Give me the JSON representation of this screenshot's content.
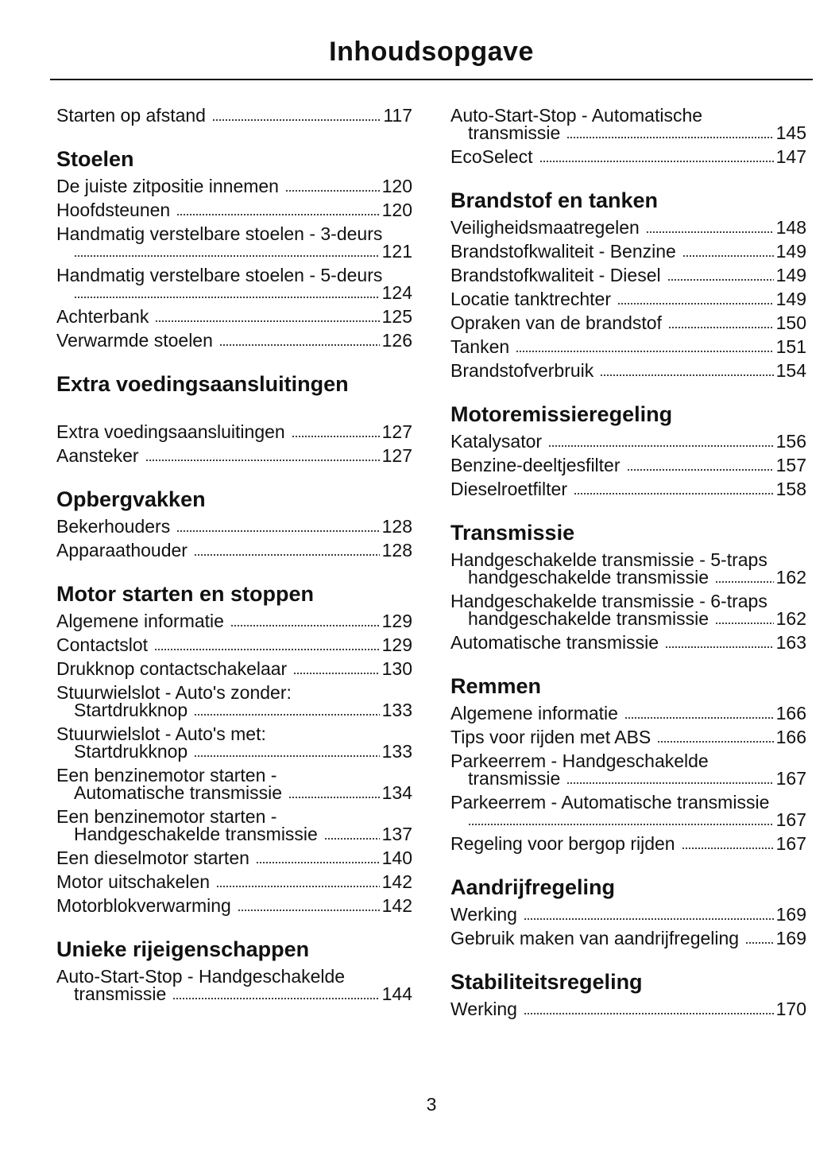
{
  "title": "Inhoudsopgave",
  "page_number": "3",
  "columns": [
    [
      {
        "type": "entry",
        "text": "Starten op afstand",
        "page": "117"
      },
      {
        "type": "heading",
        "text": "Stoelen"
      },
      {
        "type": "entry",
        "text": "De juiste zitpositie innemen",
        "page": "120"
      },
      {
        "type": "entry",
        "text": "Hoofdsteunen",
        "page": "120"
      },
      {
        "type": "entry",
        "text": "Handmatig verstelbare stoelen - 3-deurs",
        "text2": "",
        "page": "121"
      },
      {
        "type": "entry",
        "text": "Handmatig verstelbare stoelen - 5-deurs",
        "text2": "",
        "page": "124"
      },
      {
        "type": "entry",
        "text": "Achterbank",
        "page": "125"
      },
      {
        "type": "entry",
        "text": "Verwarmde stoelen",
        "page": "126"
      },
      {
        "type": "heading",
        "text": "Extra voedingsaansluitingen",
        "gap": true
      },
      {
        "type": "entry",
        "text": "Extra voedingsaansluitingen",
        "page": "127"
      },
      {
        "type": "entry",
        "text": "Aansteker",
        "page": "127"
      },
      {
        "type": "heading",
        "text": "Opbergvakken"
      },
      {
        "type": "entry",
        "text": "Bekerhouders",
        "page": "128"
      },
      {
        "type": "entry",
        "text": "Apparaathouder",
        "page": "128"
      },
      {
        "type": "heading",
        "text": "Motor starten en stoppen"
      },
      {
        "type": "entry",
        "text": "Algemene informatie",
        "page": "129"
      },
      {
        "type": "entry",
        "text": "Contactslot",
        "page": "129"
      },
      {
        "type": "entry",
        "text": "Drukknop contactschakelaar",
        "page": "130"
      },
      {
        "type": "entry",
        "text": "Stuurwielslot - Auto's zonder:",
        "text2": "Startdrukknop",
        "page": "133"
      },
      {
        "type": "entry",
        "text": "Stuurwielslot - Auto's met:",
        "text2": "Startdrukknop",
        "page": "133"
      },
      {
        "type": "entry",
        "text": "Een benzinemotor starten -",
        "text2": "Automatische transmissie",
        "page": "134"
      },
      {
        "type": "entry",
        "text": "Een benzinemotor starten -",
        "text2": "Handgeschakelde transmissie",
        "page": "137"
      },
      {
        "type": "entry",
        "text": "Een dieselmotor starten",
        "page": "140"
      },
      {
        "type": "entry",
        "text": "Motor uitschakelen",
        "page": "142"
      },
      {
        "type": "entry",
        "text": "Motorblokverwarming",
        "page": "142"
      },
      {
        "type": "heading",
        "text": "Unieke rijeigenschappen"
      },
      {
        "type": "entry",
        "text": "Auto-Start-Stop - Handgeschakelde",
        "text2": "transmissie",
        "page": "144"
      }
    ],
    [
      {
        "type": "entry",
        "text": "Auto-Start-Stop - Automatische",
        "text2": "transmissie",
        "page": "145"
      },
      {
        "type": "entry",
        "text": "EcoSelect",
        "page": "147"
      },
      {
        "type": "heading",
        "text": "Brandstof en tanken"
      },
      {
        "type": "entry",
        "text": "Veiligheidsmaatregelen",
        "page": "148"
      },
      {
        "type": "entry",
        "text": "Brandstofkwaliteit - Benzine",
        "page": "149"
      },
      {
        "type": "entry",
        "text": "Brandstofkwaliteit - Diesel",
        "page": "149"
      },
      {
        "type": "entry",
        "text": "Locatie tanktrechter",
        "page": "149"
      },
      {
        "type": "entry",
        "text": "Opraken van de brandstof",
        "page": "150"
      },
      {
        "type": "entry",
        "text": "Tanken",
        "page": "151"
      },
      {
        "type": "entry",
        "text": "Brandstofverbruik",
        "page": "154"
      },
      {
        "type": "heading",
        "text": "Motoremissieregeling"
      },
      {
        "type": "entry",
        "text": "Katalysator",
        "page": "156"
      },
      {
        "type": "entry",
        "text": "Benzine-deeltjesfilter",
        "page": "157"
      },
      {
        "type": "entry",
        "text": "Dieselroetfilter",
        "page": "158"
      },
      {
        "type": "heading",
        "text": "Transmissie"
      },
      {
        "type": "entry",
        "text": "Handgeschakelde transmissie - 5-traps",
        "text2": "handgeschakelde transmissie",
        "page": "162"
      },
      {
        "type": "entry",
        "text": "Handgeschakelde transmissie - 6-traps",
        "text2": "handgeschakelde transmissie",
        "page": "162"
      },
      {
        "type": "entry",
        "text": "Automatische transmissie",
        "page": "163"
      },
      {
        "type": "heading",
        "text": "Remmen"
      },
      {
        "type": "entry",
        "text": "Algemene informatie",
        "page": "166"
      },
      {
        "type": "entry",
        "text": "Tips voor rijden met ABS",
        "page": "166"
      },
      {
        "type": "entry",
        "text": "Parkeerrem - Handgeschakelde",
        "text2": "transmissie",
        "page": "167"
      },
      {
        "type": "entry",
        "text": "Parkeerrem - Automatische transmissie",
        "text2": "",
        "page": "167"
      },
      {
        "type": "entry",
        "text": "Regeling voor bergop rijden",
        "page": "167"
      },
      {
        "type": "heading",
        "text": "Aandrijfregeling"
      },
      {
        "type": "entry",
        "text": "Werking",
        "page": "169"
      },
      {
        "type": "entry",
        "text": "Gebruik maken van aandrijfregeling",
        "page": "169"
      },
      {
        "type": "heading",
        "text": "Stabiliteitsregeling"
      },
      {
        "type": "entry",
        "text": "Werking",
        "page": "170"
      }
    ]
  ]
}
